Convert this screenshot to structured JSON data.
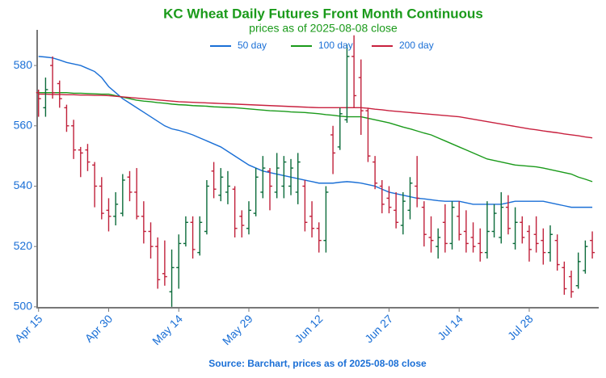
{
  "chart_data": {
    "type": "ohlc",
    "title": "KC Wheat Daily Futures Front Month Continuous",
    "subtitle": "prices as of 2025-08-08 close",
    "source": "Source: Barchart, prices as of 2025-08-08 close",
    "categories": [
      "Apr 15",
      null,
      null,
      null,
      null,
      null,
      null,
      null,
      null,
      null,
      "Apr 30",
      null,
      null,
      null,
      null,
      null,
      null,
      null,
      null,
      null,
      "May 14",
      null,
      null,
      null,
      null,
      null,
      null,
      null,
      null,
      null,
      "May 29",
      null,
      null,
      null,
      null,
      null,
      null,
      null,
      null,
      null,
      "Jun 12",
      null,
      null,
      null,
      null,
      null,
      null,
      null,
      null,
      null,
      "Jun 27",
      null,
      null,
      null,
      null,
      null,
      null,
      null,
      null,
      null,
      "Jul 14",
      null,
      null,
      null,
      null,
      null,
      null,
      null,
      null,
      null,
      "Jul 28",
      null,
      null,
      null,
      null,
      null,
      null,
      null,
      null,
      null
    ],
    "ohlc": {
      "open": [
        571,
        566,
        580,
        574,
        566,
        560,
        552,
        552,
        547,
        540,
        532,
        530,
        531,
        543,
        538,
        530,
        525,
        520,
        511,
        505,
        513,
        521,
        528,
        518,
        525,
        545,
        537,
        538,
        539,
        530,
        526,
        531,
        538,
        545,
        538,
        540,
        540,
        538,
        540,
        530,
        526,
        522,
        557,
        553,
        562,
        583,
        576,
        565,
        548,
        540,
        536,
        532,
        527,
        532,
        540,
        533,
        523,
        520,
        528,
        521,
        530,
        525,
        523,
        521,
        518,
        525,
        523,
        533,
        521,
        528,
        525,
        524,
        522,
        518,
        522,
        513,
        510,
        507,
        512,
        522
      ],
      "high": [
        572,
        576,
        583,
        575,
        567,
        562,
        553,
        554,
        548,
        543,
        536,
        538,
        544,
        545,
        546,
        535,
        528,
        523,
        522,
        519,
        524,
        530,
        530,
        530,
        542,
        548,
        546,
        545,
        540,
        532,
        535,
        546,
        550,
        546,
        551,
        550,
        549,
        551,
        542,
        535,
        528,
        540,
        560,
        566,
        587,
        590,
        582,
        566,
        550,
        542,
        540,
        538,
        538,
        543,
        550,
        535,
        530,
        526,
        534,
        535,
        535,
        532,
        528,
        526,
        535,
        534,
        538,
        537,
        533,
        530,
        527,
        530,
        526,
        527,
        524,
        515,
        512,
        518,
        522,
        525
      ],
      "low": [
        563,
        563,
        569,
        566,
        558,
        549,
        543,
        545,
        533,
        529,
        525,
        527,
        530,
        535,
        529,
        521,
        516,
        506,
        507,
        500,
        506,
        520,
        516,
        517,
        524,
        536,
        535,
        534,
        523,
        523,
        524,
        530,
        536,
        532,
        536,
        536,
        537,
        534,
        525,
        523,
        518,
        518,
        544,
        552,
        561,
        566,
        557,
        548,
        539,
        531,
        531,
        526,
        524,
        529,
        533,
        520,
        518,
        516,
        518,
        519,
        522,
        518,
        518,
        515,
        516,
        523,
        521,
        524,
        519,
        521,
        515,
        518,
        514,
        515,
        512,
        504,
        503,
        506,
        511,
        516
      ],
      "close": [
        569,
        572,
        571,
        569,
        560,
        552,
        551,
        548,
        540,
        531,
        530,
        534,
        542,
        538,
        530,
        525,
        520,
        509,
        510,
        513,
        521,
        528,
        519,
        528,
        540,
        539,
        543,
        540,
        526,
        527,
        532,
        543,
        546,
        540,
        546,
        548,
        546,
        548,
        528,
        526,
        522,
        538,
        551,
        564,
        583,
        570,
        565,
        550,
        541,
        534,
        533,
        528,
        535,
        541,
        536,
        524,
        522,
        523,
        521,
        533,
        524,
        521,
        520,
        518,
        525,
        531,
        533,
        526,
        528,
        523,
        519,
        521,
        518,
        524,
        514,
        506,
        505,
        515,
        520,
        518
      ]
    },
    "up_color": "#0b6b3a",
    "down_color": "#c0203a",
    "moving_averages": [
      {
        "name": "50 day",
        "color": "#1a6fd6",
        "values": [
          583.0,
          582.8,
          582.5,
          581.8,
          581.0,
          580.5,
          580.0,
          579.0,
          578.0,
          576.0,
          573.0,
          571.0,
          569.0,
          567.5,
          566.0,
          564.5,
          563.0,
          561.5,
          560.0,
          559.0,
          558.5,
          557.8,
          557.0,
          556.0,
          555.0,
          554.0,
          553.0,
          551.5,
          550.0,
          548.5,
          547.0,
          546.0,
          545.0,
          544.5,
          544.0,
          543.5,
          543.0,
          542.5,
          542.0,
          541.5,
          541.0,
          541.0,
          541.0,
          541.3,
          541.5,
          541.3,
          541.0,
          540.5,
          540.0,
          539.0,
          538.0,
          537.5,
          537.0,
          536.5,
          536.0,
          535.8,
          535.5,
          535.2,
          535.0,
          535.0,
          535.0,
          534.5,
          534.0,
          534.0,
          534.0,
          534.0,
          534.0,
          534.5,
          535.0,
          535.0,
          535.0,
          535.0,
          535.0,
          534.5,
          534.0,
          533.5,
          533.0,
          533.0,
          533.0,
          533.0
        ]
      },
      {
        "name": "100 day",
        "color": "#1a9a1a",
        "values": [
          571,
          571,
          571,
          571,
          571,
          570.8,
          570.8,
          570.7,
          570.6,
          570.5,
          570.5,
          570,
          569.5,
          569,
          568.5,
          568.2,
          568,
          567.7,
          567.5,
          567.2,
          567,
          566.9,
          566.7,
          566.6,
          566.5,
          566.3,
          566.2,
          566.1,
          566,
          565.8,
          565.6,
          565.4,
          565.2,
          565,
          564.9,
          564.8,
          564.6,
          564.5,
          564.4,
          564.2,
          564,
          563.7,
          563.5,
          563.2,
          563,
          563,
          563,
          562.5,
          562,
          561.5,
          561,
          560.3,
          559.6,
          559,
          558.3,
          557.6,
          557,
          556,
          555,
          554,
          553,
          552,
          551,
          550,
          549,
          548.5,
          548,
          547.5,
          547,
          546.8,
          546.6,
          546.4,
          546,
          545.5,
          545,
          544.5,
          544,
          543,
          542.3,
          541.5
        ]
      },
      {
        "name": "200 day",
        "color": "#c8203e",
        "values": [
          570.5,
          570.5,
          570.4,
          570.4,
          570.3,
          570.3,
          570.2,
          570.2,
          570.1,
          570.1,
          570.0,
          569.8,
          569.6,
          569.4,
          569.2,
          569.0,
          568.8,
          568.6,
          568.4,
          568.2,
          568.0,
          567.9,
          567.8,
          567.7,
          567.6,
          567.5,
          567.4,
          567.3,
          567.2,
          567.1,
          567.0,
          566.9,
          566.8,
          566.7,
          566.6,
          566.5,
          566.4,
          566.3,
          566.2,
          566.1,
          566.0,
          566,
          566,
          566,
          566,
          566,
          566,
          565.8,
          565.5,
          565.3,
          565.0,
          564.8,
          564.6,
          564.4,
          564.2,
          564,
          563.8,
          563.6,
          563.4,
          563.2,
          563,
          562.6,
          562.2,
          561.8,
          561.4,
          561,
          560.6,
          560.2,
          559.8,
          559.4,
          559,
          558.7,
          558.3,
          558,
          557.7,
          557.3,
          557,
          556.7,
          556.3,
          556
        ]
      }
    ],
    "ylim": [
      499.7,
      591.8
    ],
    "yticks": [
      500,
      520,
      540,
      560,
      580
    ],
    "grid": false,
    "legend": "top"
  }
}
